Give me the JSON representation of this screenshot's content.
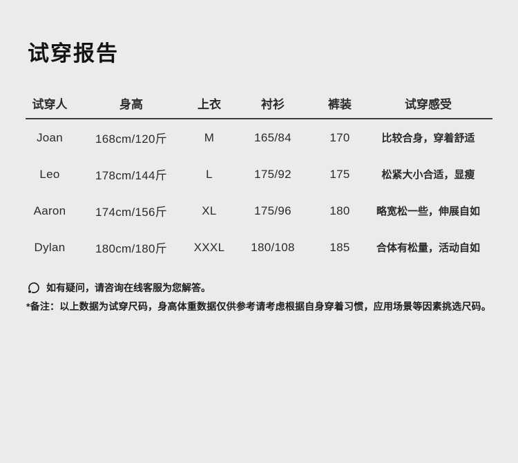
{
  "page": {
    "title": "试穿报告",
    "background_color": "#ebebeb",
    "rule_color": "#3b3b3b",
    "text_color": "#2a2a2a"
  },
  "table": {
    "headers": [
      "试穿人",
      "身高",
      "上衣",
      "衬衫",
      "裤装",
      "试穿感受"
    ],
    "rows": [
      [
        "Joan",
        "168cm/120斤",
        "M",
        "165/84",
        "170",
        "比较合身，穿着舒适"
      ],
      [
        "Leo",
        "178cm/144斤",
        "L",
        "175/92",
        "175",
        "松紧大小合适，显瘦"
      ],
      [
        "Aaron",
        "174cm/156斤",
        "XL",
        "175/96",
        "180",
        "略宽松一些，伸展自如"
      ],
      [
        "Dylan",
        "180cm/180斤",
        "XXXL",
        "180/108",
        "185",
        "合体有松量，活动自如"
      ]
    ]
  },
  "footer": {
    "service_icon": "customer-service-headset-icon",
    "service_note": "如有疑问，请咨询在线客服为您解答。",
    "remark": "*备注：以上数据为试穿尺码，身高体重数据仅供参考请考虑根据自身穿着习惯，应用场景等因素挑选尺码。"
  }
}
